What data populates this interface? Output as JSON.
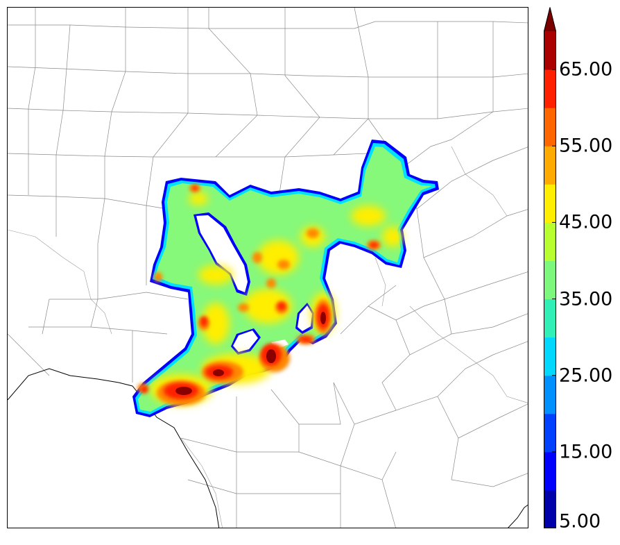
{
  "colorbar": {
    "levels": [
      5,
      10,
      15,
      20,
      25,
      30,
      35,
      40,
      45,
      50,
      55,
      60,
      65,
      70
    ],
    "colors": [
      "#0000aa",
      "#0000ff",
      "#0040ff",
      "#0090ff",
      "#00d8ff",
      "#30f0b8",
      "#7cf87c",
      "#b8ff30",
      "#ffee00",
      "#ffaa00",
      "#ff6600",
      "#ff2000",
      "#aa0000",
      "#7a0000"
    ],
    "tick_labels": [
      "5.00",
      "15.00",
      "25.00",
      "35.00",
      "45.00",
      "55.00",
      "65.00"
    ],
    "extend": "max"
  },
  "map": {
    "background": "#ffffff",
    "county_line_color": "#8a8a8a",
    "border_line_color": "#000000"
  }
}
